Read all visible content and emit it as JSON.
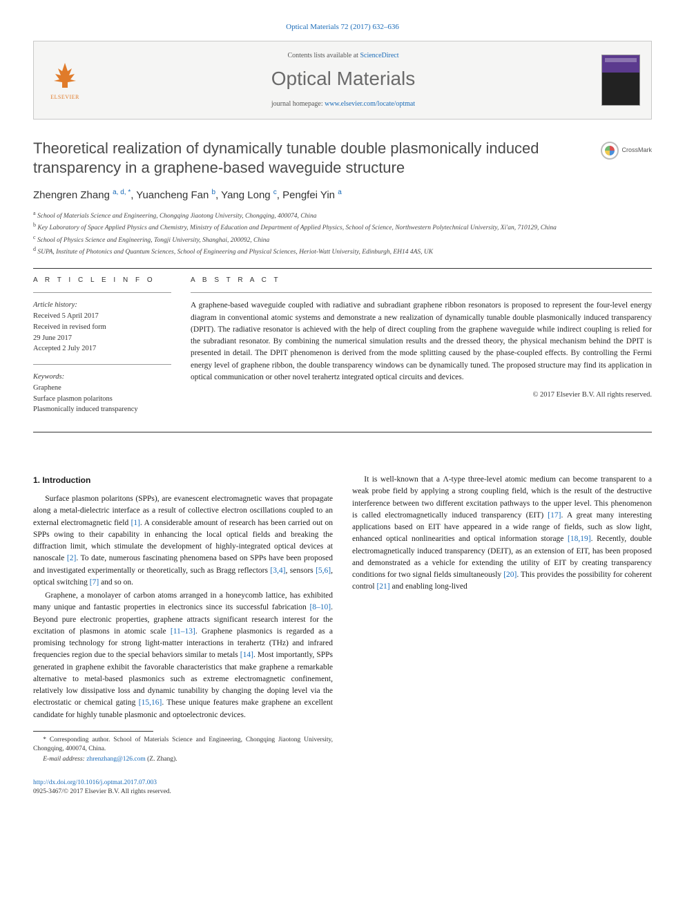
{
  "journal_ref": "Optical Materials 72 (2017) 632–636",
  "header": {
    "contents_prefix": "Contents lists available at ",
    "contents_link": "ScienceDirect",
    "journal_name": "Optical Materials",
    "homepage_prefix": "journal homepage: ",
    "homepage_url": "www.elsevier.com/locate/optmat",
    "publisher_label": "ELSEVIER",
    "cover_label": "Optical Materials"
  },
  "crossmark_label": "CrossMark",
  "title": "Theoretical realization of dynamically tunable double plasmonically induced transparency in a graphene-based waveguide structure",
  "authors": [
    {
      "name": "Zhengren Zhang",
      "sup": "a, d, *"
    },
    {
      "name": "Yuancheng Fan",
      "sup": "b"
    },
    {
      "name": "Yang Long",
      "sup": "c"
    },
    {
      "name": "Pengfei Yin",
      "sup": "a"
    }
  ],
  "affiliations": [
    {
      "sup": "a",
      "text": "School of Materials Science and Engineering, Chongqing Jiaotong University, Chongqing, 400074, China"
    },
    {
      "sup": "b",
      "text": "Key Laboratory of Space Applied Physics and Chemistry, Ministry of Education and Department of Applied Physics, School of Science, Northwestern Polytechnical University, Xi'an, 710129, China"
    },
    {
      "sup": "c",
      "text": "School of Physics Science and Engineering, Tongji University, Shanghai, 200092, China"
    },
    {
      "sup": "d",
      "text": "SUPA, Institute of Photonics and Quantum Sciences, School of Engineering and Physical Sciences, Heriot-Watt University, Edinburgh, EH14 4AS, UK"
    }
  ],
  "info": {
    "section_label": "A R T I C L E  I N F O",
    "history_hdr": "Article history:",
    "history": [
      "Received 5 April 2017",
      "Received in revised form",
      "29 June 2017",
      "Accepted 2 July 2017"
    ],
    "keywords_hdr": "Keywords:",
    "keywords": [
      "Graphene",
      "Surface plasmon polaritons",
      "Plasmonically induced transparency"
    ]
  },
  "abstract": {
    "section_label": "A B S T R A C T",
    "text": "A graphene-based waveguide coupled with radiative and subradiant graphene ribbon resonators is proposed to represent the four-level energy diagram in conventional atomic systems and demonstrate a new realization of dynamically tunable double plasmonically induced transparency (DPIT). The radiative resonator is achieved with the help of direct coupling from the graphene waveguide while indirect coupling is relied for the subradiant resonator. By combining the numerical simulation results and the dressed theory, the physical mechanism behind the DPIT is presented in detail. The DPIT phenomenon is derived from the mode splitting caused by the phase-coupled effects. By controlling the Fermi energy level of graphene ribbon, the double transparency windows can be dynamically tuned. The proposed structure may find its application in optical communication or other novel terahertz integrated optical circuits and devices.",
    "copyright": "© 2017 Elsevier B.V. All rights reserved."
  },
  "intro": {
    "heading": "1. Introduction",
    "p1": "Surface plasmon polaritons (SPPs), are evanescent electromagnetic waves that propagate along a metal-dielectric interface as a result of collective electron oscillations coupled to an external electromagnetic field [1]. A considerable amount of research has been carried out on SPPs owing to their capability in enhancing the local optical fields and breaking the diffraction limit, which stimulate the development of highly-integrated optical devices at nanoscale [2]. To date, numerous fascinating phenomena based on SPPs have been proposed and investigated experimentally or theoretically, such as Bragg reflectors [3,4], sensors [5,6], optical switching [7] and so on.",
    "p2": "Graphene, a monolayer of carbon atoms arranged in a honeycomb lattice, has exhibited many unique and fantastic properties in electronics since its successful fabrication [8–10]. Beyond pure electronic properties, graphene attracts significant research interest for the excitation of plasmons in atomic scale [11–13]. Graphene plasmonics is regarded as a promising technology for strong light-matter interactions in terahertz (THz) and infrared frequencies region due to the special behaviors similar to metals [14]. Most importantly, SPPs generated in graphene exhibit the favorable characteristics that make graphene a remarkable alternative to metal-based plasmonics such as extreme electromagnetic confinement, relatively low dissipative loss and dynamic tunability by changing the doping level via the electrostatic or chemical gating [15,16]. These unique features make graphene an excellent candidate for highly tunable plasmonic and optoelectronic devices.",
    "p3": "It is well-known that a Λ-type three-level atomic medium can become transparent to a weak probe field by applying a strong coupling field, which is the result of the destructive interference between two different excitation pathways to the upper level. This phenomenon is called electromagnetically induced transparency (EIT) [17]. A great many interesting applications based on EIT have appeared in a wide range of fields, such as slow light, enhanced optical nonlinearities and optical information storage [18,19]. Recently, double electromagnetically induced transparency (DEIT), as an extension of EIT, has been proposed and demonstrated as a vehicle for extending the utility of EIT by creating transparency conditions for two signal fields simultaneously [20]. This provides the possibility for coherent control [21] and enabling long-lived"
  },
  "footnote": {
    "corr": "* Corresponding author. School of Materials Science and Engineering, Chongqing Jiaotong University, Chongqing, 400074, China.",
    "email_label": "E-mail address:",
    "email": "zhrenzhang@126.com",
    "email_suffix": "(Z. Zhang)."
  },
  "footer": {
    "doi": "http://dx.doi.org/10.1016/j.optmat.2017.07.003",
    "issn_copyright": "0925-3467/© 2017 Elsevier B.V. All rights reserved."
  },
  "colors": {
    "link": "#1a6bb8",
    "elsevier_orange": "#e07b2a",
    "title_gray": "#4a4a4a",
    "rule": "#333333"
  }
}
